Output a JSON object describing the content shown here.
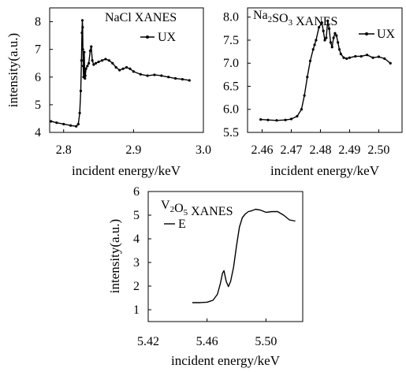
{
  "chart_data": [
    {
      "id": "nacl",
      "type": "line",
      "title": {
        "parts": [
          {
            "text": "NaCl XANES"
          }
        ]
      },
      "xlabel": "incident energy/keV",
      "ylabel": "intensity(a.u.)",
      "xlim": [
        2.78,
        3.0
      ],
      "ylim": [
        4,
        8.5
      ],
      "xticks": [
        "2.8",
        "2.9",
        "3.0"
      ],
      "yticks": [
        "4",
        "5",
        "6",
        "7",
        "8"
      ],
      "legend": {
        "position": "top-right",
        "marker": "dot"
      },
      "series": [
        {
          "name": "UX",
          "color": "#000000",
          "marker": "dot",
          "x": [
            2.782,
            2.79,
            2.8,
            2.81,
            2.818,
            2.821,
            2.823,
            2.8245,
            2.8255,
            2.8262,
            2.8268,
            2.8272,
            2.8276,
            2.828,
            2.8285,
            2.829,
            2.8295,
            2.83,
            2.8305,
            2.831,
            2.832,
            2.834,
            2.836,
            2.838,
            2.8395,
            2.841,
            2.843,
            2.846,
            2.85,
            2.855,
            2.86,
            2.865,
            2.87,
            2.875,
            2.88,
            2.885,
            2.89,
            2.895,
            2.9,
            2.91,
            2.92,
            2.93,
            2.94,
            2.95,
            2.96,
            2.97,
            2.98
          ],
          "y": [
            4.4,
            4.35,
            4.3,
            4.25,
            4.22,
            4.3,
            4.7,
            5.5,
            6.6,
            7.6,
            8.05,
            7.8,
            7.0,
            6.4,
            6.0,
            6.3,
            6.9,
            6.3,
            5.95,
            6.05,
            6.3,
            6.4,
            6.5,
            6.95,
            7.1,
            6.6,
            6.45,
            6.5,
            6.55,
            6.6,
            6.65,
            6.6,
            6.5,
            6.35,
            6.25,
            6.3,
            6.35,
            6.3,
            6.2,
            6.1,
            6.05,
            6.08,
            6.05,
            6.0,
            5.95,
            5.92,
            5.88
          ]
        }
      ]
    },
    {
      "id": "na2so3",
      "type": "line",
      "title": {
        "parts": [
          {
            "text": "Na"
          },
          {
            "text": "2",
            "sub": true
          },
          {
            "text": "SO"
          },
          {
            "text": "3",
            "sub": true
          },
          {
            "text": " XANES"
          }
        ]
      },
      "xlabel": "incident energy/keV",
      "ylabel": "",
      "xlim": [
        2.455,
        2.508
      ],
      "ylim": [
        5.5,
        8.2
      ],
      "xticks": [
        "2.46",
        "2.47",
        "2.48",
        "2.49",
        "2.50"
      ],
      "yticks": [
        "5.5",
        "6.0",
        "6.5",
        "7.0",
        "7.5",
        "8.0"
      ],
      "legend": {
        "position": "top-right",
        "marker": "dot"
      },
      "series": [
        {
          "name": "UX",
          "color": "#000000",
          "marker": "dot",
          "x": [
            2.4595,
            2.462,
            2.465,
            2.468,
            2.47,
            2.472,
            2.4735,
            2.4745,
            2.4755,
            2.4765,
            2.4775,
            2.478,
            2.4785,
            2.4795,
            2.4805,
            2.481,
            2.4815,
            2.482,
            2.4825,
            2.483,
            2.4835,
            2.484,
            2.4845,
            2.485,
            2.4855,
            2.486,
            2.4865,
            2.487,
            2.488,
            2.489,
            2.49,
            2.492,
            2.494,
            2.496,
            2.498,
            2.5,
            2.502,
            2.504
          ],
          "y": [
            5.78,
            5.77,
            5.76,
            5.77,
            5.79,
            5.85,
            6.0,
            6.3,
            6.7,
            7.05,
            7.3,
            7.4,
            7.5,
            7.78,
            7.88,
            7.7,
            7.5,
            7.55,
            7.92,
            7.75,
            7.45,
            7.35,
            7.55,
            7.65,
            7.6,
            7.45,
            7.3,
            7.2,
            7.12,
            7.1,
            7.12,
            7.15,
            7.15,
            7.18,
            7.12,
            7.14,
            7.1,
            7.0
          ]
        }
      ]
    },
    {
      "id": "v2o5",
      "type": "line",
      "title": {
        "parts": [
          {
            "text": "V"
          },
          {
            "text": "2",
            "sub": true
          },
          {
            "text": "O"
          },
          {
            "text": "5",
            "sub": true
          },
          {
            "text": " XANES"
          }
        ]
      },
      "xlabel": "incident energy/keV",
      "ylabel": "intensity(a.u.)",
      "xlim": [
        5.42,
        5.525
      ],
      "ylim": [
        0.5,
        6
      ],
      "xticks": [
        "5.42",
        "5.46",
        "5.50"
      ],
      "yticks": [
        "1",
        "2",
        "3",
        "4",
        "5",
        "6"
      ],
      "legend": {
        "position": "top-left",
        "marker": "line"
      },
      "series": [
        {
          "name": "E",
          "color": "#000000",
          "marker": "none",
          "x": [
            5.45,
            5.455,
            5.46,
            5.464,
            5.467,
            5.469,
            5.4705,
            5.4715,
            5.473,
            5.4745,
            5.476,
            5.478,
            5.48,
            5.482,
            5.484,
            5.486,
            5.488,
            5.49,
            5.493,
            5.496,
            5.5,
            5.504,
            5.508,
            5.512,
            5.516,
            5.52
          ],
          "y": [
            1.3,
            1.3,
            1.32,
            1.4,
            1.65,
            2.1,
            2.55,
            2.65,
            2.2,
            1.98,
            2.2,
            2.8,
            3.7,
            4.5,
            4.9,
            5.05,
            5.15,
            5.18,
            5.25,
            5.22,
            5.12,
            5.15,
            5.15,
            5.0,
            4.8,
            4.75
          ]
        }
      ]
    }
  ]
}
